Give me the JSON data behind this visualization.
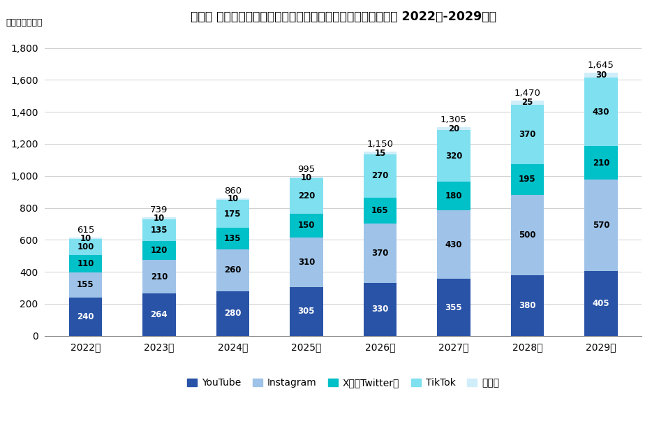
{
  "title": "【国内 インフルエンサーマーケティングの市場規模推計・予測 2022年-2029年】",
  "unit_label": "（単位：億円）",
  "years": [
    "2022年",
    "2023年",
    "2024年",
    "2025年",
    "2026年",
    "2027年",
    "2028年",
    "2029年"
  ],
  "totals": [
    615,
    739,
    860,
    995,
    1150,
    1305,
    1470,
    1645
  ],
  "series_order": [
    "YouTube",
    "Instagram",
    "X（旧Twitter）",
    "TikTok",
    "その他"
  ],
  "series": {
    "YouTube": [
      240,
      264,
      280,
      305,
      330,
      355,
      380,
      405
    ],
    "Instagram": [
      155,
      210,
      260,
      310,
      370,
      430,
      500,
      570
    ],
    "X（旧Twitter）": [
      110,
      120,
      135,
      150,
      165,
      180,
      195,
      210
    ],
    "TikTok": [
      100,
      135,
      175,
      220,
      270,
      320,
      370,
      430
    ],
    "その他": [
      10,
      10,
      10,
      10,
      15,
      20,
      25,
      30
    ]
  },
  "colors": {
    "YouTube": "#2953A6",
    "Instagram": "#9FC3E8",
    "X（旧Twitter）": "#00C0C8",
    "TikTok": "#7FE0F0",
    "その他": "#D0EEFA"
  },
  "label_colors": {
    "YouTube": "white",
    "Instagram": "black",
    "X（旧Twitter）": "black",
    "TikTok": "black",
    "その他": "black"
  },
  "legend_labels": [
    "YouTube",
    "Instagram",
    "X（旧Twitter）",
    "TikTok",
    "その他"
  ],
  "ylim": [
    0,
    1900
  ],
  "yticks": [
    0,
    200,
    400,
    600,
    800,
    1000,
    1200,
    1400,
    1600,
    1800
  ],
  "ytick_labels": [
    "0",
    "200",
    "400",
    "600",
    "800",
    "1,000",
    "1,200",
    "1,400",
    "1,600",
    "1,800"
  ],
  "bar_width": 0.45,
  "title_fontsize": 12.5,
  "label_fontsize": 8.5,
  "tick_fontsize": 10,
  "legend_fontsize": 10,
  "total_fontsize": 9.5
}
